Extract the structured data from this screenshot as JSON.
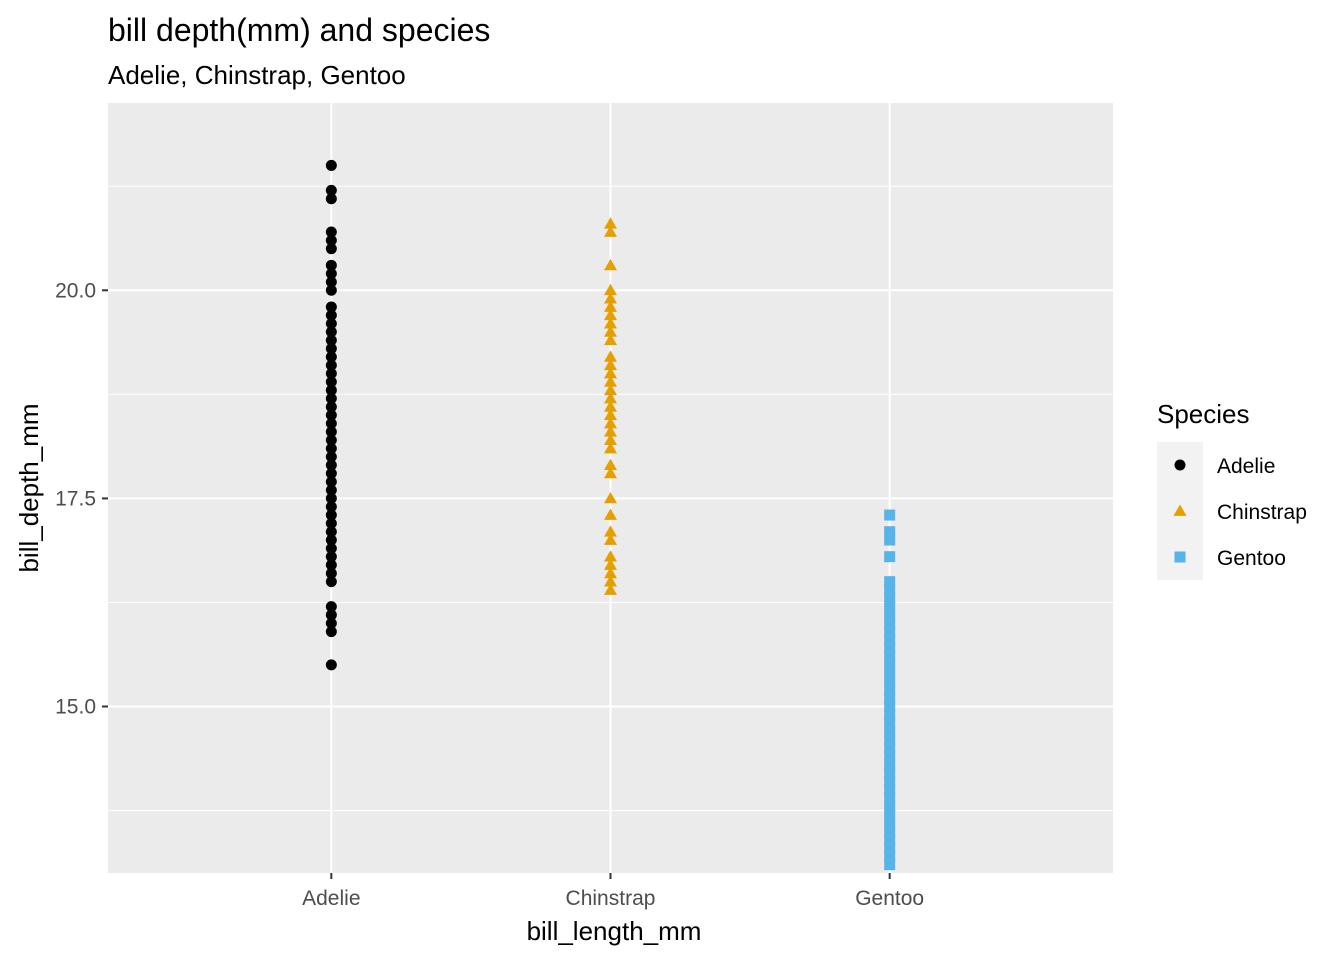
{
  "chart_data": {
    "type": "scatter",
    "title": "bill depth(mm) and species",
    "subtitle": "Adelie, Chinstrap, Gentoo",
    "xlabel": "bill_length_mm",
    "ylabel": "bill_depth_mm",
    "categories": [
      "Adelie",
      "Chinstrap",
      "Gentoo"
    ],
    "ylim": [
      13.0,
      22.25
    ],
    "yticks": [
      15.0,
      17.5,
      20.0
    ],
    "ytick_labels": [
      "15.0",
      "17.5",
      "20.0"
    ],
    "grid": true,
    "legend": {
      "title": "Species",
      "position": "right",
      "entries": [
        "Adelie",
        "Chinstrap",
        "Gentoo"
      ]
    },
    "series": [
      {
        "name": "Adelie",
        "category": "Adelie",
        "shape": "circle",
        "color": "#000000",
        "values": [
          21.5,
          21.2,
          21.1,
          20.7,
          20.6,
          20.5,
          20.3,
          20.2,
          20.1,
          20.0,
          19.8,
          19.7,
          19.6,
          19.5,
          19.4,
          19.3,
          19.2,
          19.1,
          19.0,
          18.9,
          18.8,
          18.7,
          18.6,
          18.5,
          18.4,
          18.3,
          18.2,
          18.1,
          18.0,
          17.9,
          17.8,
          17.7,
          17.6,
          17.5,
          17.4,
          17.3,
          17.2,
          17.1,
          17.0,
          16.9,
          16.8,
          16.7,
          16.6,
          16.5,
          16.2,
          16.1,
          16.0,
          15.9,
          15.5
        ]
      },
      {
        "name": "Chinstrap",
        "category": "Chinstrap",
        "shape": "triangle",
        "color": "#E69F00",
        "values": [
          20.8,
          20.7,
          20.3,
          20.0,
          19.9,
          19.8,
          19.7,
          19.6,
          19.5,
          19.4,
          19.2,
          19.1,
          19.0,
          18.9,
          18.8,
          18.7,
          18.6,
          18.5,
          18.4,
          18.3,
          18.2,
          18.1,
          17.9,
          17.8,
          17.5,
          17.3,
          17.1,
          17.0,
          16.8,
          16.7,
          16.6,
          16.5,
          16.4
        ]
      },
      {
        "name": "Gentoo",
        "category": "Gentoo",
        "shape": "square",
        "color": "#56B4E9",
        "values": [
          17.3,
          17.1,
          17.0,
          16.8,
          16.5,
          16.4,
          16.3,
          16.2,
          16.1,
          16.0,
          15.9,
          15.8,
          15.7,
          15.6,
          15.5,
          15.4,
          15.3,
          15.2,
          15.1,
          15.0,
          14.9,
          14.8,
          14.7,
          14.6,
          14.5,
          14.4,
          14.3,
          14.2,
          14.1,
          14.0,
          13.9,
          13.8,
          13.7,
          13.6,
          13.5,
          13.4,
          13.3,
          13.2,
          13.1
        ]
      }
    ]
  },
  "colors": {
    "panel_background": "#EBEBEB",
    "grid_line": "#FFFFFF",
    "legend_key_background": "#F2F2F2"
  }
}
